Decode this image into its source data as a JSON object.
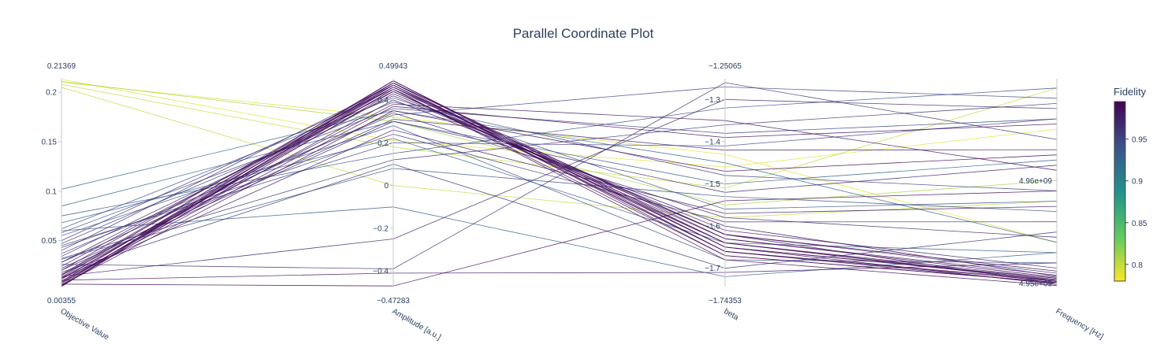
{
  "chart_data": {
    "type": "parallel-coordinates",
    "title": "Parallel Coordinate Plot",
    "colorbar": {
      "title": "Fidelity",
      "range": [
        0.78,
        0.995
      ],
      "ticks": [
        "0.8",
        "0.85",
        "0.9",
        "0.95"
      ],
      "tick_values": [
        0.8,
        0.85,
        0.9,
        0.95
      ],
      "colorscale": [
        "#fde725",
        "#5ec962",
        "#21918c",
        "#3b528b",
        "#440154"
      ]
    },
    "dimensions": [
      {
        "label": "Objective Value",
        "range": [
          0.00355,
          0.21369
        ],
        "min_label": "0.00355",
        "max_label": "0.21369",
        "ticks": [
          "0.05",
          "0.1",
          "0.15",
          "0.2"
        ],
        "tick_values": [
          0.05,
          0.1,
          0.15,
          0.2
        ]
      },
      {
        "label": "Amplitude [a.u.]",
        "range": [
          -0.47283,
          0.49943
        ],
        "min_label": "−0.47283",
        "max_label": "0.49943",
        "ticks": [
          "−0.4",
          "−0.2",
          "0",
          "0.2",
          "0.4"
        ],
        "tick_values": [
          -0.4,
          -0.2,
          0,
          0.2,
          0.4
        ]
      },
      {
        "label": "beta",
        "range": [
          -1.74353,
          -1.25065
        ],
        "min_label": "−1.74353",
        "max_label": "−1.25065",
        "ticks": [
          "−1.7",
          "−1.6",
          "−1.5",
          "−1.4",
          "−1.3"
        ],
        "tick_values": [
          -1.7,
          -1.6,
          -1.5,
          -1.4,
          -1.3
        ]
      },
      {
        "label": "Frequency [Hz]",
        "range": [
          4949700000.0,
          4969900000.0
        ],
        "min_label": "",
        "max_label": "",
        "ticks": [
          "4.95e+09",
          "4.96e+09"
        ],
        "tick_values": [
          4950000000.0,
          4960000000.0
        ]
      }
    ],
    "lines": [
      {
        "values": [
          0.21,
          0.32,
          -1.43,
          4954000000.0
        ],
        "fidelity": 0.79
      },
      {
        "values": [
          0.213,
          0.21,
          -1.46,
          4965000000.0
        ],
        "fidelity": 0.79
      },
      {
        "values": [
          0.208,
          0.18,
          -1.51,
          4969000000.0
        ],
        "fidelity": 0.8
      },
      {
        "values": [
          0.205,
          0.0,
          -1.58,
          4958000000.0
        ],
        "fidelity": 0.8
      },
      {
        "values": [
          0.211,
          0.3,
          -1.55,
          4960000000.0
        ],
        "fidelity": 0.81
      },
      {
        "values": [
          0.102,
          0.35,
          -1.45,
          4954000000.0
        ],
        "fidelity": 0.92
      },
      {
        "values": [
          0.085,
          0.3,
          -1.5,
          4962000000.0
        ],
        "fidelity": 0.93
      },
      {
        "values": [
          0.075,
          0.15,
          -1.32,
          4969000000.0
        ],
        "fidelity": 0.94
      },
      {
        "values": [
          0.068,
          0.22,
          -1.64,
          4953000000.0
        ],
        "fidelity": 0.93
      },
      {
        "values": [
          0.062,
          0.41,
          -1.56,
          4958000000.0
        ],
        "fidelity": 0.94
      },
      {
        "values": [
          0.058,
          0.36,
          -1.38,
          4966000000.0
        ],
        "fidelity": 0.95
      },
      {
        "values": [
          0.055,
          0.28,
          -1.68,
          4952000000.0
        ],
        "fidelity": 0.94
      },
      {
        "values": [
          0.05,
          0.45,
          -1.62,
          4951000000.0
        ],
        "fidelity": 0.96
      },
      {
        "values": [
          0.047,
          0.39,
          -1.48,
          4959000000.0
        ],
        "fidelity": 0.95
      },
      {
        "values": [
          0.043,
          0.24,
          -1.59,
          4956000000.0
        ],
        "fidelity": 0.96
      },
      {
        "values": [
          0.04,
          0.47,
          -1.65,
          4950500000.0
        ],
        "fidelity": 0.97
      },
      {
        "values": [
          0.037,
          0.33,
          -1.27,
          4968000000.0
        ],
        "fidelity": 0.95
      },
      {
        "values": [
          0.034,
          0.42,
          -1.61,
          4951500000.0
        ],
        "fidelity": 0.97
      },
      {
        "values": [
          0.031,
          0.08,
          -1.53,
          4957000000.0
        ],
        "fidelity": 0.94
      },
      {
        "values": [
          0.028,
          0.44,
          -1.63,
          4950800000.0
        ],
        "fidelity": 0.98
      },
      {
        "values": [
          0.026,
          -0.39,
          -1.26,
          4964000000.0
        ],
        "fidelity": 0.96
      },
      {
        "values": [
          0.024,
          0.46,
          -1.66,
          4950300000.0
        ],
        "fidelity": 0.98
      },
      {
        "values": [
          0.022,
          0.31,
          -1.42,
          4963000000.0
        ],
        "fidelity": 0.97
      },
      {
        "values": [
          0.02,
          0.48,
          -1.64,
          4950200000.0
        ],
        "fidelity": 0.99
      },
      {
        "values": [
          0.018,
          0.1,
          -1.7,
          4955000000.0
        ],
        "fidelity": 0.96
      },
      {
        "values": [
          0.016,
          0.47,
          -1.66,
          4950000000.0
        ],
        "fidelity": 0.99
      },
      {
        "values": [
          0.015,
          0.38,
          -1.35,
          4961000000.0
        ],
        "fidelity": 0.98
      },
      {
        "values": [
          0.014,
          -0.25,
          -1.3,
          4967000000.0
        ],
        "fidelity": 0.97
      },
      {
        "values": [
          0.013,
          0.49,
          -1.65,
          4950400000.0
        ],
        "fidelity": 0.99
      },
      {
        "values": [
          0.012,
          0.26,
          -1.57,
          4957500000.0
        ],
        "fidelity": 0.98
      },
      {
        "values": [
          0.011,
          0.45,
          -1.67,
          4950100000.0
        ],
        "fidelity": 0.99
      },
      {
        "values": [
          0.01,
          -0.41,
          -1.71,
          4952000000.0
        ],
        "fidelity": 0.98
      },
      {
        "values": [
          0.009,
          0.48,
          -1.63,
          4950600000.0
        ],
        "fidelity": 0.99
      },
      {
        "values": [
          0.008,
          0.37,
          -1.39,
          4965500000.0
        ],
        "fidelity": 0.99
      },
      {
        "values": [
          0.007,
          0.46,
          -1.62,
          4950000000.0
        ],
        "fidelity": 0.99
      },
      {
        "values": [
          0.006,
          -0.47,
          -1.54,
          4959000000.0
        ],
        "fidelity": 0.99
      },
      {
        "values": [
          0.0055,
          0.49,
          -1.66,
          4950200000.0
        ],
        "fidelity": 0.99
      },
      {
        "values": [
          0.005,
          0.35,
          -1.47,
          4962500000.0
        ],
        "fidelity": 0.99
      },
      {
        "values": [
          0.0045,
          0.47,
          -1.65,
          4949900000.0
        ],
        "fidelity": 0.99
      },
      {
        "values": [
          0.004,
          0.44,
          -1.64,
          4950300000.0
        ],
        "fidelity": 0.99
      },
      {
        "values": [
          0.0036,
          0.48,
          -1.67,
          4950100000.0
        ],
        "fidelity": 0.99
      },
      {
        "values": [
          0.012,
          0.43,
          -1.62,
          4951200000.0
        ],
        "fidelity": 0.99
      },
      {
        "values": [
          0.009,
          0.4,
          -1.6,
          4950700000.0
        ],
        "fidelity": 0.99
      },
      {
        "values": [
          0.015,
          0.46,
          -1.64,
          4950500000.0
        ],
        "fidelity": 0.98
      },
      {
        "values": [
          0.007,
          0.45,
          -1.68,
          4949800000.0
        ],
        "fidelity": 0.99
      },
      {
        "values": [
          0.02,
          0.3,
          -1.52,
          4961500000.0
        ],
        "fidelity": 0.97
      },
      {
        "values": [
          0.06,
          -0.1,
          -1.72,
          4953000000.0
        ],
        "fidelity": 0.93
      },
      {
        "values": [
          0.045,
          0.2,
          -1.41,
          4966000000.0
        ],
        "fidelity": 0.95
      },
      {
        "values": [
          0.032,
          0.12,
          -1.36,
          4967500000.0
        ],
        "fidelity": 0.96
      },
      {
        "values": [
          0.028,
          0.34,
          -1.58,
          4954500000.0
        ],
        "fidelity": 0.97
      }
    ]
  }
}
